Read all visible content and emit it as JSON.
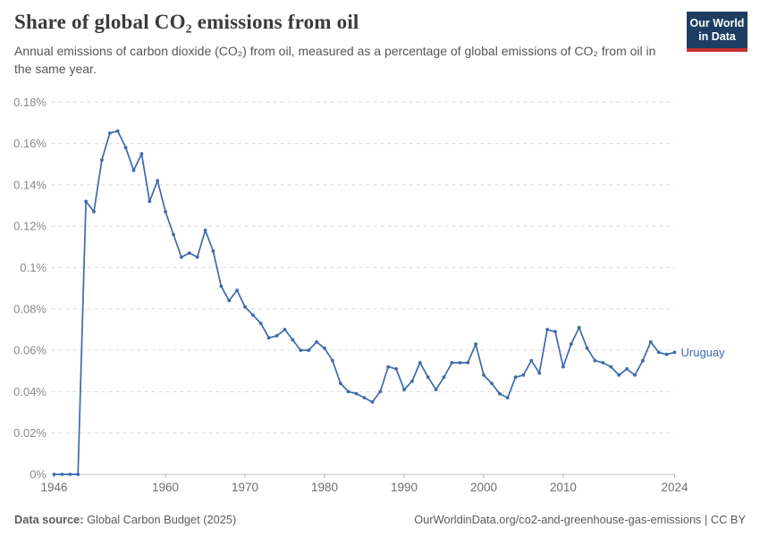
{
  "header": {
    "title": "Share of global CO₂ emissions from oil",
    "subtitle": "Annual emissions of carbon dioxide (CO₂) from oil, measured as a percentage of global emissions of CO₂ from oil in the same year."
  },
  "logo": {
    "line1": "Our World",
    "line2": "in Data",
    "bg_color": "#1d3d63",
    "bar_color": "#c7302f"
  },
  "chart_data": {
    "type": "line",
    "entity": "Uruguay",
    "line_color": "#3d6aad",
    "grid": true,
    "legend_position": "end-of-line",
    "xlim": [
      1946,
      2024
    ],
    "ylim": [
      0,
      0.18
    ],
    "ylabel": "",
    "xlabel": "",
    "ytick_values": [
      0,
      0.02,
      0.04,
      0.06,
      0.08,
      0.1,
      0.12,
      0.14,
      0.16,
      0.18
    ],
    "ytick_labels": [
      "0%",
      "0.02%",
      "0.04%",
      "0.06%",
      "0.08%",
      "0.1%",
      "0.12%",
      "0.14%",
      "0.16%",
      "0.18%"
    ],
    "xtick_values": [
      1946,
      1960,
      1970,
      1980,
      1990,
      2000,
      2010,
      2024
    ],
    "x": [
      1946,
      1947,
      1948,
      1949,
      1950,
      1951,
      1952,
      1953,
      1954,
      1955,
      1956,
      1957,
      1958,
      1959,
      1960,
      1961,
      1962,
      1963,
      1964,
      1965,
      1966,
      1967,
      1968,
      1969,
      1970,
      1971,
      1972,
      1973,
      1974,
      1975,
      1976,
      1977,
      1978,
      1979,
      1980,
      1981,
      1982,
      1983,
      1984,
      1985,
      1986,
      1987,
      1988,
      1989,
      1990,
      1991,
      1992,
      1993,
      1994,
      1995,
      1996,
      1997,
      1998,
      1999,
      2000,
      2001,
      2002,
      2003,
      2004,
      2005,
      2006,
      2007,
      2008,
      2009,
      2010,
      2011,
      2012,
      2013,
      2014,
      2015,
      2016,
      2017,
      2018,
      2019,
      2020,
      2021,
      2022,
      2023,
      2024
    ],
    "values": [
      0,
      0,
      0,
      0,
      0.132,
      0.127,
      0.152,
      0.165,
      0.166,
      0.158,
      0.147,
      0.155,
      0.132,
      0.142,
      0.127,
      0.116,
      0.105,
      0.107,
      0.105,
      0.118,
      0.108,
      0.091,
      0.084,
      0.089,
      0.081,
      0.077,
      0.073,
      0.066,
      0.067,
      0.07,
      0.065,
      0.06,
      0.06,
      0.064,
      0.061,
      0.055,
      0.044,
      0.04,
      0.039,
      0.037,
      0.035,
      0.04,
      0.052,
      0.051,
      0.041,
      0.045,
      0.054,
      0.047,
      0.041,
      0.047,
      0.054,
      0.054,
      0.054,
      0.063,
      0.048,
      0.044,
      0.039,
      0.037,
      0.047,
      0.048,
      0.055,
      0.049,
      0.07,
      0.069,
      0.052,
      0.063,
      0.071,
      0.061,
      0.055,
      0.054,
      0.052,
      0.048,
      0.051,
      0.048,
      0.055,
      0.064,
      0.059,
      0.058,
      0.059
    ]
  },
  "footer": {
    "source_label": "Data source:",
    "source_text": "Global Carbon Budget (2025)",
    "link_text": "OurWorldinData.org/co2-and-greenhouse-gas-emissions | CC BY"
  }
}
